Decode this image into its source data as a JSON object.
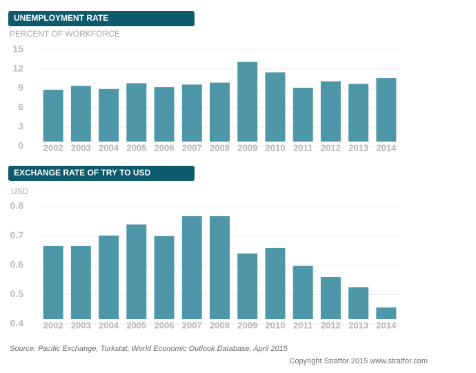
{
  "chart_data": [
    {
      "type": "bar",
      "title": "UNEMPLOYMENT RATE",
      "y_label": "PERCENT OF WORKFORCE",
      "categories": [
        "2002",
        "2003",
        "2004",
        "2005",
        "2006",
        "2007",
        "2008",
        "2009",
        "2010",
        "2011",
        "2012",
        "2013",
        "2014"
      ],
      "values": [
        8.8,
        9.4,
        8.9,
        9.8,
        9.2,
        9.6,
        9.9,
        13.1,
        11.5,
        9.1,
        10.1,
        9.7,
        10.6
      ],
      "color": "#4e97a8",
      "ylim": [
        0,
        15
      ],
      "yticks": [
        0,
        3,
        6,
        9,
        12,
        15
      ],
      "grid": true
    },
    {
      "type": "bar",
      "title": "EXCHANGE RATE OF TRY TO USD",
      "y_label": "USD",
      "categories": [
        "2002",
        "2003",
        "2004",
        "2005",
        "2006",
        "2007",
        "2008",
        "2009",
        "2010",
        "2011",
        "2012",
        "2013",
        "2014"
      ],
      "values": [
        0.666,
        0.666,
        0.701,
        0.739,
        0.699,
        0.767,
        0.767,
        0.64,
        0.659,
        0.598,
        0.56,
        0.525,
        0.456
      ],
      "color": "#4e97a8",
      "ylim": [
        0.4,
        0.8
      ],
      "yticks": [
        0.4,
        0.5,
        0.6,
        0.7,
        0.8
      ],
      "grid": true
    }
  ],
  "source": "Source: Pacific Exchange, Turkstat, World Economic Outlook Database, April 2015",
  "copyright": "Copyright Stratfor 2015   www.stratfor.com"
}
